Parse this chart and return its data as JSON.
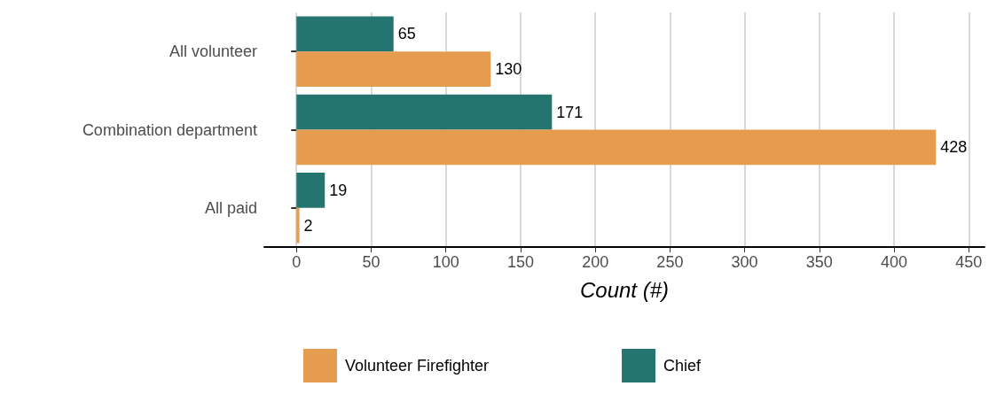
{
  "chart_data": {
    "type": "bar",
    "orientation": "horizontal",
    "categories": [
      "All volunteer",
      "Combination department",
      "All paid"
    ],
    "series": [
      {
        "name": "Chief",
        "color": "#24756f",
        "values": [
          65,
          171,
          19
        ]
      },
      {
        "name": "Volunteer Firefighter",
        "color": "#e59c4f",
        "values": [
          130,
          428,
          2
        ]
      }
    ],
    "xlabel": "Count (#)",
    "xlim": [
      -21.5,
      460.5
    ],
    "xticks": [
      0,
      50,
      100,
      150,
      200,
      250,
      300,
      350,
      400,
      450
    ],
    "grid": "x",
    "legend": "bottom",
    "data_labels": true
  }
}
